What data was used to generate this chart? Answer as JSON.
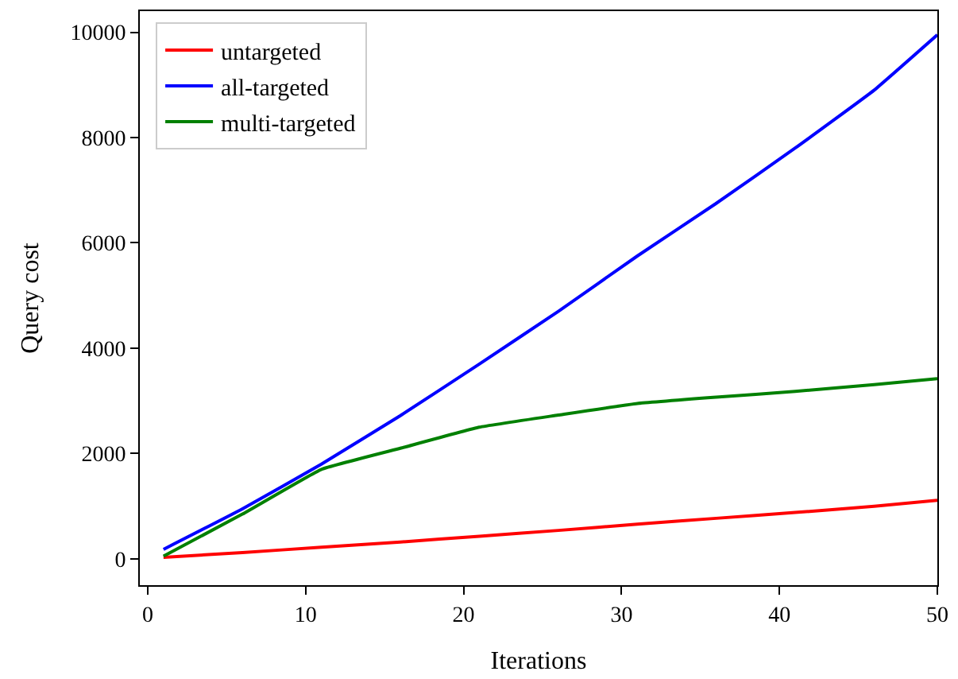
{
  "chart_data": {
    "type": "line",
    "xlabel": "Iterations",
    "ylabel": "Query cost",
    "x": [
      1,
      6,
      11,
      16,
      21,
      26,
      31,
      36,
      41,
      46,
      50
    ],
    "series": [
      {
        "name": "untargeted",
        "color": "#ff0000",
        "values": [
          30,
          120,
          220,
          320,
          430,
          540,
          660,
          770,
          880,
          1000,
          1110
        ]
      },
      {
        "name": "all-targeted",
        "color": "#0000ff",
        "values": [
          180,
          950,
          1800,
          2720,
          3700,
          4700,
          5750,
          6750,
          7800,
          8900,
          9950
        ]
      },
      {
        "name": "multi-targeted",
        "color": "#008000",
        "values": [
          50,
          850,
          1700,
          2100,
          2500,
          2730,
          2950,
          3070,
          3180,
          3310,
          3420
        ]
      }
    ],
    "xlim": [
      -0.5,
      50
    ],
    "ylim": [
      -500,
      10400
    ],
    "xticks": [
      0,
      10,
      20,
      30,
      40,
      50
    ],
    "yticks": [
      0,
      2000,
      4000,
      6000,
      8000,
      10000
    ],
    "legend": "top left",
    "marker": "none",
    "line_style": "solid"
  }
}
